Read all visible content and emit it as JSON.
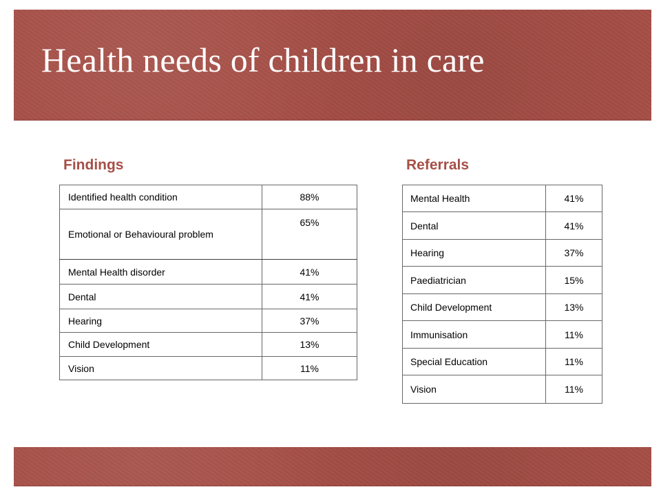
{
  "slide": {
    "title": "Health needs of children in care"
  },
  "findings": {
    "heading": "Findings",
    "rows": [
      {
        "label": "Identified health condition",
        "value": "88%"
      },
      {
        "label": "Emotional or Behavioural problem",
        "value": "65%"
      },
      {
        "label": "Mental Health disorder",
        "value": "41%"
      },
      {
        "label": "Dental",
        "value": "41%"
      },
      {
        "label": "Hearing",
        "value": "37%"
      },
      {
        "label": "Child Development",
        "value": "13%"
      },
      {
        "label": "Vision",
        "value": "11%"
      }
    ]
  },
  "referrals": {
    "heading": "Referrals",
    "rows": [
      {
        "label": "Mental Health",
        "value": "41%"
      },
      {
        "label": "Dental",
        "value": "41%"
      },
      {
        "label": "Hearing",
        "value": "37%"
      },
      {
        "label": "Paediatrician",
        "value": "15%"
      },
      {
        "label": "Child Development",
        "value": "13%"
      },
      {
        "label": "Immunisation",
        "value": "11%"
      },
      {
        "label": "Special Education",
        "value": "11%"
      },
      {
        "label": "Vision",
        "value": "11%"
      }
    ]
  },
  "colors": {
    "band": "#a64f47",
    "heading": "#a64f47",
    "title_text": "#ffffff"
  }
}
